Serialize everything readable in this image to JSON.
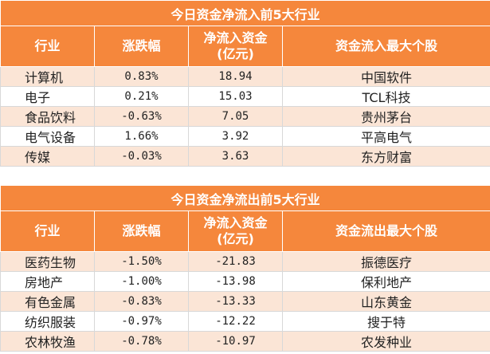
{
  "inflow": {
    "title": "今日资金净流入前5大行业",
    "headers": [
      "行业",
      "涨跌幅",
      "净流入资金\n(亿元)",
      "资金流入最大个股"
    ],
    "rows": [
      [
        "计算机",
        "0.83%",
        "18.94",
        "中国软件"
      ],
      [
        "电子",
        "0.21%",
        "15.03",
        "TCL科技"
      ],
      [
        "食品饮料",
        "-0.63%",
        "7.05",
        "贵州茅台"
      ],
      [
        "电气设备",
        "1.66%",
        "3.92",
        "平高电气"
      ],
      [
        "传媒",
        "-0.03%",
        "3.63",
        "东方财富"
      ]
    ]
  },
  "outflow": {
    "title": "今日资金净流出前5大行业",
    "headers": [
      "行业",
      "涨跌幅",
      "净流入资金\n(亿元)",
      "资金流出最大个股"
    ],
    "rows": [
      [
        "医药生物",
        "-1.50%",
        "-21.83",
        "振德医疗"
      ],
      [
        "房地产",
        "-1.00%",
        "-13.98",
        "保利地产"
      ],
      [
        "有色金属",
        "-0.83%",
        "-13.33",
        "山东黄金"
      ],
      [
        "纺织服装",
        "-0.97%",
        "-12.22",
        "搜于特"
      ],
      [
        "农林牧渔",
        "-0.78%",
        "-10.97",
        "农发种业"
      ]
    ]
  },
  "colors": {
    "header": "#f5873c",
    "stripe": "#fbe5d6"
  }
}
